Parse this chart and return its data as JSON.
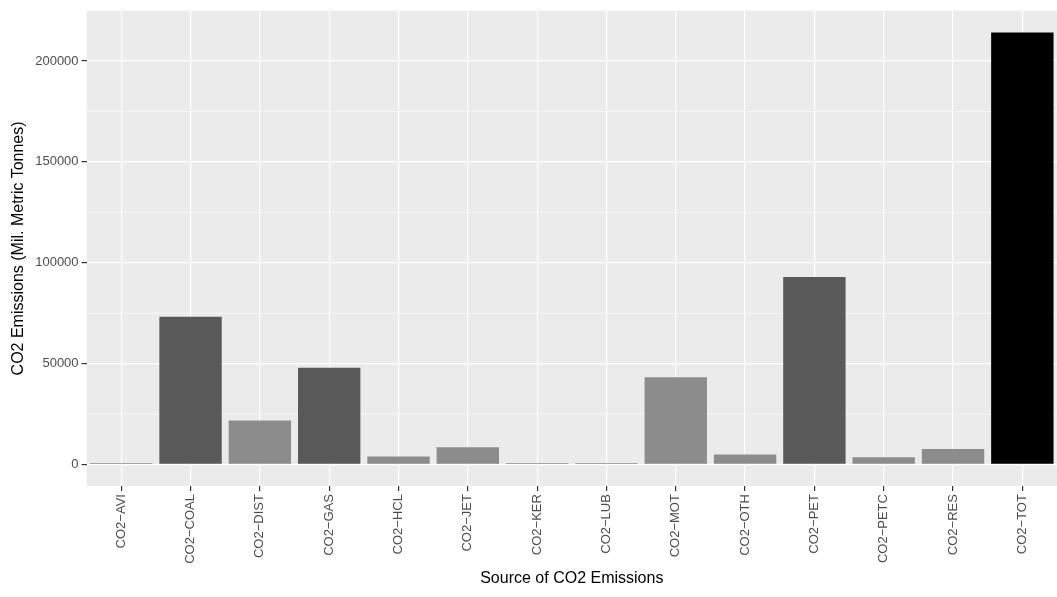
{
  "chart_data": {
    "type": "bar",
    "xlabel": "Source of CO2 Emissions",
    "ylabel": "CO2 Emissions (Mil. Metric Tonnes)",
    "categories": [
      "CO2−AVI",
      "CO2−COAL",
      "CO2−DIST",
      "CO2−GAS",
      "CO2−HCL",
      "CO2−JET",
      "CO2−KER",
      "CO2−LUB",
      "CO2−MOT",
      "CO2−OTH",
      "CO2−PET",
      "CO2−PETC",
      "CO2−RES",
      "CO2−TOT"
    ],
    "values": [
      700,
      73200,
      21800,
      48000,
      3900,
      8500,
      700,
      700,
      43300,
      5000,
      93000,
      3600,
      7700,
      214200
    ],
    "colors": [
      "#8c8c8c",
      "#595959",
      "#8c8c8c",
      "#595959",
      "#8c8c8c",
      "#8c8c8c",
      "#8c8c8c",
      "#8c8c8c",
      "#8c8c8c",
      "#8c8c8c",
      "#595959",
      "#8c8c8c",
      "#8c8c8c",
      "#000000"
    ],
    "ylim": [
      -10710,
      224910
    ],
    "yticks": [
      0,
      50000,
      100000,
      150000,
      200000
    ],
    "grid": true,
    "legend": false
  }
}
